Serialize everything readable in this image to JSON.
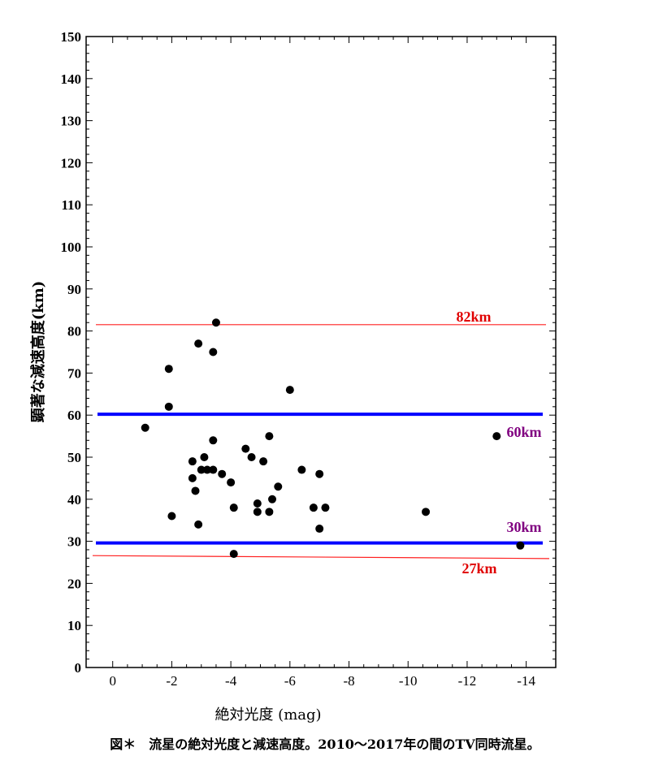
{
  "chart_data": {
    "type": "scatter",
    "ylabel": "顕著な減速高度(km)",
    "xlabel": "絶対光度 (mag)",
    "xlim": [
      0.9,
      -15.0
    ],
    "ylim": [
      0,
      150
    ],
    "xticks": [
      0,
      -2,
      -4,
      -6,
      -8,
      -10,
      -12,
      -14
    ],
    "yticks": [
      0,
      10,
      20,
      30,
      40,
      50,
      60,
      70,
      80,
      90,
      100,
      110,
      120,
      130,
      140,
      150
    ],
    "grid": false,
    "series": [
      {
        "points": [
          [
            -1.1,
            57
          ],
          [
            -1.9,
            71
          ],
          [
            -1.9,
            62
          ],
          [
            -2.0,
            36
          ],
          [
            -2.7,
            49
          ],
          [
            -2.7,
            45
          ],
          [
            -2.8,
            42
          ],
          [
            -2.9,
            34
          ],
          [
            -2.9,
            77
          ],
          [
            -3.0,
            47
          ],
          [
            -3.1,
            50
          ],
          [
            -3.2,
            47
          ],
          [
            -3.4,
            47
          ],
          [
            -3.4,
            54
          ],
          [
            -3.4,
            75
          ],
          [
            -3.5,
            82
          ],
          [
            -3.7,
            46
          ],
          [
            -4.0,
            44
          ],
          [
            -4.1,
            38
          ],
          [
            -4.1,
            27
          ],
          [
            -4.5,
            52
          ],
          [
            -4.7,
            50
          ],
          [
            -4.9,
            39
          ],
          [
            -4.9,
            37
          ],
          [
            -5.1,
            49
          ],
          [
            -5.3,
            55
          ],
          [
            -5.3,
            37
          ],
          [
            -5.4,
            40
          ],
          [
            -5.6,
            43
          ],
          [
            -6.0,
            66
          ],
          [
            -6.4,
            47
          ],
          [
            -6.8,
            38
          ],
          [
            -7.0,
            46
          ],
          [
            -7.0,
            33
          ],
          [
            -7.2,
            38
          ],
          [
            -10.6,
            37
          ],
          [
            -13.0,
            55
          ],
          [
            -13.8,
            29
          ]
        ],
        "color": "#000000"
      }
    ],
    "reference_lines": [
      {
        "label": "82km",
        "y_left": 81.5,
        "y_right": 81.5,
        "color": "#ff2020",
        "width": "thin",
        "label_color": "#e00000"
      },
      {
        "label": "60km",
        "y_left": 60.2,
        "y_right": 60.2,
        "color": "#0000ff",
        "width": "thick",
        "label_color": "#800080"
      },
      {
        "label": "30km",
        "y_left": 29.6,
        "y_right": 29.6,
        "color": "#0000ff",
        "width": "thick",
        "label_color": "#800080"
      },
      {
        "label": "27km",
        "y_left": 26.6,
        "y_right": 25.9,
        "color": "#ff2020",
        "width": "thin",
        "label_color": "#e00000"
      }
    ]
  },
  "caption": "図＊　流星の絶対光度と減速高度。2010〜2017年の間のTV同時流星。"
}
